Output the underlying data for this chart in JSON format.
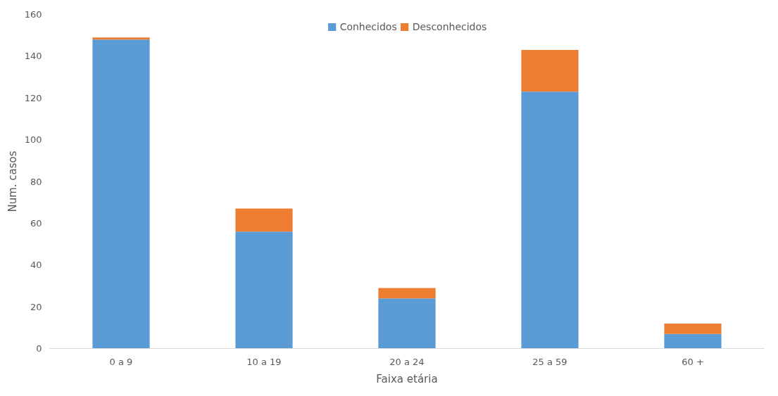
{
  "chart_data": {
    "type": "bar",
    "stacked": true,
    "xlabel": "Faixa etária",
    "ylabel": "Num. casos",
    "categories": [
      "0 a 9",
      "10 a 19",
      "20 a 24",
      "25 a 59",
      "60 +"
    ],
    "series": [
      {
        "name": "Conhecidos",
        "color": "#5b9bd5",
        "values": [
          148,
          56,
          24,
          123,
          7
        ]
      },
      {
        "name": "Desconhecidos",
        "color": "#ed7d31",
        "values": [
          1,
          11,
          5,
          20,
          5
        ]
      }
    ],
    "ylim": [
      0,
      160
    ],
    "yticks": [
      0,
      20,
      40,
      60,
      80,
      100,
      120,
      140,
      160
    ],
    "grid": false,
    "legend": "top"
  }
}
